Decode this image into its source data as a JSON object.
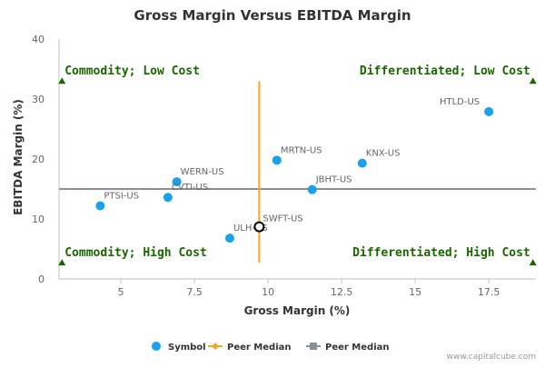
{
  "chart_data": {
    "type": "scatter",
    "title": "Gross Margin Versus EBITDA Margin",
    "xlabel": "Gross Margin (%)",
    "ylabel": "EBITDA Margin (%)",
    "xlim": [
      2.9,
      19.1
    ],
    "ylim": [
      0,
      40
    ],
    "xticks": [
      5,
      7.5,
      10,
      12.5,
      15,
      17.5
    ],
    "xtick_labels": [
      "5",
      "7.5",
      "10",
      "12.5",
      "15",
      "17.5"
    ],
    "yticks": [
      0,
      10,
      20,
      30,
      40
    ],
    "ytick_labels": [
      "0",
      "10",
      "20",
      "30",
      "40"
    ],
    "grid": false,
    "points": [
      {
        "label": "HTLD-US",
        "x": 17.5,
        "y": 27.9
      },
      {
        "label": "KNX-US",
        "x": 13.2,
        "y": 19.3
      },
      {
        "label": "MRTN-US",
        "x": 10.3,
        "y": 19.8
      },
      {
        "label": "WERN-US",
        "x": 6.9,
        "y": 16.2
      },
      {
        "label": "JBHT-US",
        "x": 11.5,
        "y": 14.9
      },
      {
        "label": "CVTI-US",
        "x": 6.6,
        "y": 13.6
      },
      {
        "label": "PTSI-US",
        "x": 4.3,
        "y": 12.2
      },
      {
        "label": "ULH-US",
        "x": 8.7,
        "y": 6.8
      }
    ],
    "highlight_point": {
      "label": "SWFT-US",
      "x": 9.7,
      "y": 8.7
    },
    "peer_median_x": 9.7,
    "peer_median_y": 15.0,
    "quadrants": [
      {
        "label": "Commodity; Low Cost",
        "x": 3.0,
        "y": 33,
        "anchor": "start",
        "position": "top-left"
      },
      {
        "label": "Differentiated; Low Cost",
        "x": 19.0,
        "y": 33,
        "anchor": "end",
        "position": "top-right"
      },
      {
        "label": "Commodity; High Cost",
        "x": 3.0,
        "y": 2.7,
        "anchor": "start",
        "position": "bottom-left"
      },
      {
        "label": "Differentiated; High Cost",
        "x": 19.0,
        "y": 2.7,
        "anchor": "end",
        "position": "bottom-right"
      }
    ],
    "legend": [
      {
        "label": "Symbol",
        "marker": "circle",
        "color": "#1aa1ec"
      },
      {
        "label": "Peer Median",
        "marker": "line-diamond",
        "color": "#f5a623"
      },
      {
        "label": "Peer Median",
        "marker": "line-square",
        "color": "#8a8f99"
      }
    ],
    "legend_position": "bottom-center",
    "colors": {
      "point": "#1aa1ec",
      "vertical_median": "#f5a623",
      "horizontal_median": "#8a8f99",
      "quadrant_text": "#1a6600",
      "quadrant_marker": "#1a6600"
    }
  },
  "credit": "www.capitalcube.com"
}
